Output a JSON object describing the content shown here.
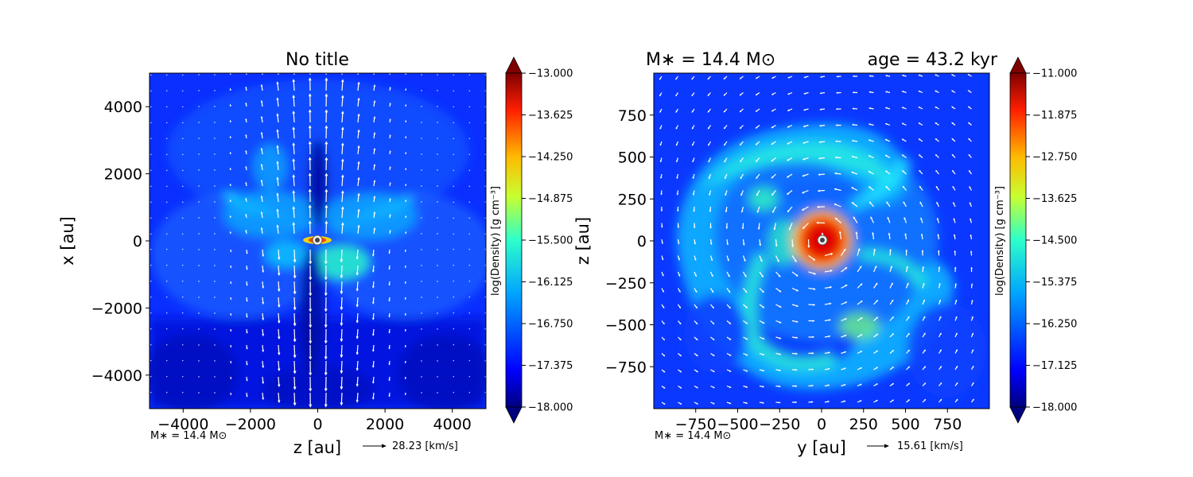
{
  "chart_data": [
    {
      "type": "heatmap",
      "subtype": "density-contour-with-velocity-quiver",
      "title": "No title",
      "xlabel": "z [au]",
      "ylabel": "x [au]",
      "xlim": [
        -5000,
        5000
      ],
      "ylim": [
        -5000,
        5000
      ],
      "xticks": [
        -4000,
        -2000,
        0,
        2000,
        4000
      ],
      "yticks": [
        -4000,
        -2000,
        0,
        2000,
        4000
      ],
      "xtick_labels": [
        "−4000",
        "−2000",
        "0",
        "2000",
        "4000"
      ],
      "ytick_labels": [
        "−4000",
        "−2000",
        "0",
        "2000",
        "4000"
      ],
      "colorbar": {
        "label": "log(Density) [g cm⁻³]",
        "range": [
          -18.0,
          -13.0
        ],
        "ticks": [
          -13.0,
          -13.625,
          -14.25,
          -14.875,
          -15.5,
          -16.125,
          -16.75,
          -17.375,
          -18.0
        ],
        "tick_labels": [
          "−13.000",
          "−13.625",
          "−14.250",
          "−14.875",
          "−15.500",
          "−16.125",
          "−16.750",
          "−17.375",
          "−18.000"
        ],
        "colormap": "jet",
        "extend": "both"
      },
      "mass_annotation": "M∗ = 14.4 M⊙",
      "quiver_key": {
        "value": 28.23,
        "label": "28.23 [km/s]"
      },
      "star_position": [
        0,
        0
      ]
    },
    {
      "type": "heatmap",
      "subtype": "density-contour-with-velocity-quiver",
      "title_left": "M∗ = 14.4 M⊙",
      "title_right": "age = 43.2 kyr",
      "xlabel": "y [au]",
      "ylabel": "z [au]",
      "xlim": [
        -1000,
        1000
      ],
      "ylim": [
        -1000,
        1000
      ],
      "xticks": [
        -750,
        -500,
        -250,
        0,
        250,
        500,
        750
      ],
      "yticks": [
        -750,
        -500,
        -250,
        0,
        250,
        500,
        750
      ],
      "xtick_labels": [
        "−750",
        "−500",
        "−250",
        "0",
        "250",
        "500",
        "750"
      ],
      "ytick_labels": [
        "−750",
        "−500",
        "−250",
        "0",
        "250",
        "500",
        "750"
      ],
      "colorbar": {
        "label": "log(Density) [g cm⁻³]",
        "range": [
          -18.0,
          -11.0
        ],
        "ticks": [
          -11.0,
          -11.875,
          -12.75,
          -13.625,
          -14.5,
          -15.375,
          -16.25,
          -17.125,
          -18.0
        ],
        "tick_labels": [
          "−11.000",
          "−11.875",
          "−12.750",
          "−13.625",
          "−14.500",
          "−15.375",
          "−16.250",
          "−17.125",
          "−18.000"
        ],
        "colormap": "jet",
        "extend": "both"
      },
      "mass_annotation": "M∗ = 14.4 M⊙",
      "quiver_key": {
        "value": 15.61,
        "label": "15.61 [km/s]"
      },
      "star_position": [
        0,
        0
      ]
    }
  ]
}
